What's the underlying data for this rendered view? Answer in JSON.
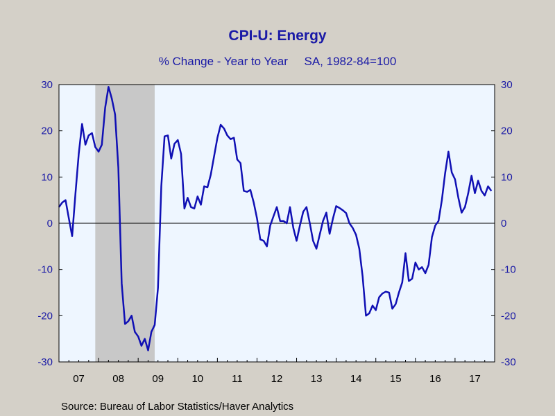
{
  "chart_data": {
    "type": "line",
    "title": "CPI-U: Energy",
    "subtitle": "% Change - Year to Year     SA, 1982-84=100",
    "source": "Source:  Bureau of Labor Statistics/Haver Analytics",
    "y_ticks": [
      "30",
      "20",
      "10",
      "0",
      "-10",
      "-20",
      "-30"
    ],
    "x_ticks": [
      "07",
      "08",
      "09",
      "10",
      "11",
      "12",
      "13",
      "14",
      "15",
      "16",
      "17"
    ],
    "ylim": [
      -30,
      30
    ],
    "xlim": [
      "2007-01",
      "2018-01"
    ],
    "grid": false,
    "zero_line": true,
    "recession_shading": [
      {
        "start": "2007-12",
        "end": "2009-06"
      }
    ],
    "colors": {
      "line": "#1010b4",
      "plot_bg": "#eef6ff",
      "recession": "#c8c8c8",
      "axis_text": "#1a1aa6",
      "frame": "#d4d0c8"
    },
    "series": [
      {
        "color": "#1010b4",
        "x": [
          "2007-01",
          "2007-02",
          "2007-03",
          "2007-04",
          "2007-05",
          "2007-06",
          "2007-07",
          "2007-08",
          "2007-09",
          "2007-10",
          "2007-11",
          "2007-12",
          "2008-01",
          "2008-02",
          "2008-03",
          "2008-04",
          "2008-05",
          "2008-06",
          "2008-07",
          "2008-08",
          "2008-09",
          "2008-10",
          "2008-11",
          "2008-12",
          "2009-01",
          "2009-02",
          "2009-03",
          "2009-04",
          "2009-05",
          "2009-06",
          "2009-07",
          "2009-08",
          "2009-09",
          "2009-10",
          "2009-11",
          "2009-12",
          "2010-01",
          "2010-02",
          "2010-03",
          "2010-04",
          "2010-05",
          "2010-06",
          "2010-07",
          "2010-08",
          "2010-09",
          "2010-10",
          "2010-11",
          "2010-12",
          "2011-01",
          "2011-02",
          "2011-03",
          "2011-04",
          "2011-05",
          "2011-06",
          "2011-07",
          "2011-08",
          "2011-09",
          "2011-10",
          "2011-11",
          "2011-12",
          "2012-01",
          "2012-02",
          "2012-03",
          "2012-04",
          "2012-05",
          "2012-06",
          "2012-07",
          "2012-08",
          "2012-09",
          "2012-10",
          "2012-11",
          "2012-12",
          "2013-01",
          "2013-02",
          "2013-03",
          "2013-04",
          "2013-05",
          "2013-06",
          "2013-07",
          "2013-08",
          "2013-09",
          "2013-10",
          "2013-11",
          "2013-12",
          "2014-01",
          "2014-02",
          "2014-03",
          "2014-04",
          "2014-05",
          "2014-06",
          "2014-07",
          "2014-08",
          "2014-09",
          "2014-10",
          "2014-11",
          "2014-12",
          "2015-01",
          "2015-02",
          "2015-03",
          "2015-04",
          "2015-05",
          "2015-06",
          "2015-07",
          "2015-08",
          "2015-09",
          "2015-10",
          "2015-11",
          "2015-12",
          "2016-01",
          "2016-02",
          "2016-03",
          "2016-04",
          "2016-05",
          "2016-06",
          "2016-07",
          "2016-08",
          "2016-09",
          "2016-10",
          "2016-11",
          "2016-12",
          "2017-01",
          "2017-02",
          "2017-03",
          "2017-04",
          "2017-05",
          "2017-06",
          "2017-07",
          "2017-08",
          "2017-09",
          "2017-10",
          "2017-11",
          "2017-12"
        ],
        "values": [
          3.5,
          4.5,
          5.0,
          1.0,
          -2.8,
          6.5,
          15.0,
          21.5,
          17.0,
          19.0,
          19.5,
          16.5,
          15.5,
          17.0,
          25.0,
          29.5,
          27.0,
          23.5,
          12.0,
          -13.0,
          -21.8,
          -21.2,
          -20.0,
          -23.5,
          -24.5,
          -26.5,
          -25.0,
          -27.5,
          -23.5,
          -22.0,
          -14.0,
          8.0,
          18.8,
          19.0,
          14.0,
          17.2,
          18.0,
          15.0,
          3.2,
          5.5,
          3.5,
          3.2,
          5.8,
          4.0,
          8.0,
          7.8,
          10.5,
          14.5,
          18.5,
          21.3,
          20.5,
          19.0,
          18.2,
          18.5,
          13.8,
          13.0,
          7.0,
          6.8,
          7.2,
          4.5,
          1.0,
          -3.5,
          -3.8,
          -5.0,
          -0.5,
          1.5,
          3.5,
          0.5,
          0.5,
          0.0,
          3.5,
          -1.0,
          -3.8,
          -0.5,
          2.5,
          3.5,
          0.0,
          -3.8,
          -5.5,
          -2.5,
          0.5,
          2.3,
          -2.3,
          1.0,
          3.7,
          3.3,
          2.8,
          2.2,
          0.0,
          -1.0,
          -2.5,
          -5.5,
          -11.5,
          -20.0,
          -19.5,
          -17.8,
          -18.8,
          -16.0,
          -15.2,
          -14.8,
          -15.0,
          -18.5,
          -17.5,
          -15.0,
          -12.8,
          -6.5,
          -12.5,
          -12.0,
          -8.5,
          -10.0,
          -9.5,
          -10.8,
          -9.0,
          -3.0,
          -0.5,
          0.5,
          5.0,
          10.8,
          15.5,
          11.0,
          9.5,
          5.5,
          2.3,
          3.5,
          6.5,
          10.3,
          6.5,
          9.2,
          7.0,
          6.0,
          8.0,
          7.0
        ]
      }
    ]
  }
}
